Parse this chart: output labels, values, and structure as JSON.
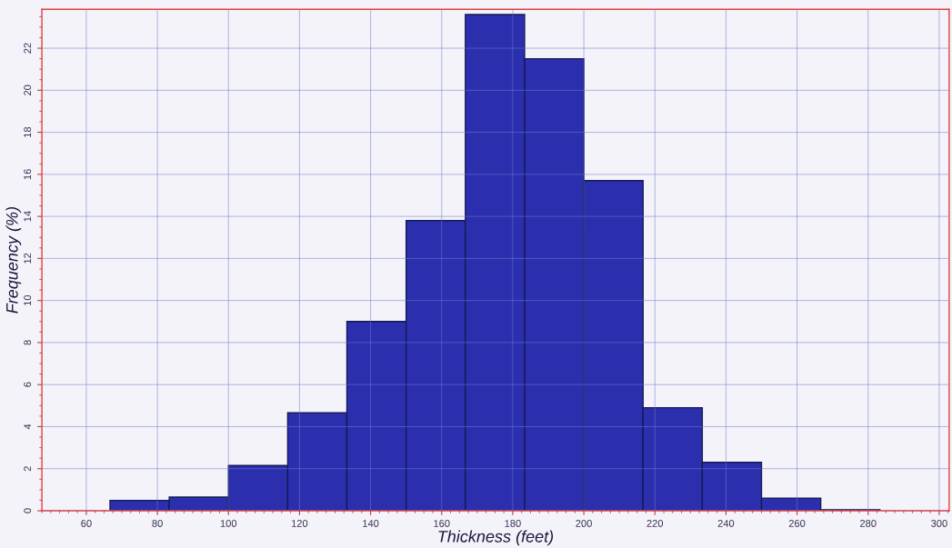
{
  "chart_data": {
    "type": "histogram",
    "xlabel": "Thickness (feet)",
    "ylabel": "Frequency (%)",
    "bins": [
      66.67,
      83.33,
      100,
      116.67,
      133.33,
      150,
      166.67,
      183.33,
      200,
      216.67,
      233.33,
      250,
      266.67,
      283.33
    ],
    "values": [
      0.49,
      0.65,
      2.15,
      4.66,
      9.0,
      13.8,
      23.6,
      21.5,
      15.7,
      4.9,
      2.3,
      0.6,
      0.05
    ],
    "color": "#2b2fae",
    "xlim": [
      47.5,
      302.8
    ],
    "ylim": [
      0,
      23.85
    ],
    "xticks": [
      60,
      80,
      100,
      120,
      140,
      160,
      180,
      200,
      220,
      240,
      260,
      280,
      300
    ],
    "yticks": [
      0,
      2,
      4,
      6,
      8,
      10,
      12,
      14,
      16,
      18,
      20,
      22
    ],
    "grid": true
  }
}
